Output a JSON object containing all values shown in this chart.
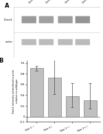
{
  "panel_b": {
    "categories": [
      "Dnm1$^{+/+}$",
      "Dnm1$^{P/P}$",
      "Dnm1$^{+/Pa}$",
      "Dnm1$^{Pa/Pa}$"
    ],
    "values": [
      0.9,
      0.72,
      0.38,
      0.3
    ],
    "errors_upper": [
      0.05,
      0.4,
      0.25,
      0.32
    ],
    "errors_lower": [
      0.05,
      0.3,
      0.2,
      0.15
    ],
    "bar_color": "#c0c0c0",
    "bar_edge_color": "#666666",
    "ylabel": "Dnm1 intensity normalized to actin\nrelative to wildtype",
    "ylim": [
      -0.1,
      1.05
    ],
    "yticks": [
      -0.1,
      0.0,
      0.2,
      0.4,
      0.6,
      0.8,
      1.0
    ],
    "ytick_labels": [
      "-0.1",
      "0",
      "0.2",
      "0.4",
      "0.6",
      "0.8",
      "1.0"
    ],
    "label_B": "B"
  },
  "panel_a": {
    "label_A": "A",
    "label_Dnm1": "Dnm1",
    "label_actin": "actin"
  },
  "fig_bg": "#ffffff",
  "wb_bg": "#f0f0f0",
  "band_dark": "#888888",
  "band_light": "#aaaaaa"
}
